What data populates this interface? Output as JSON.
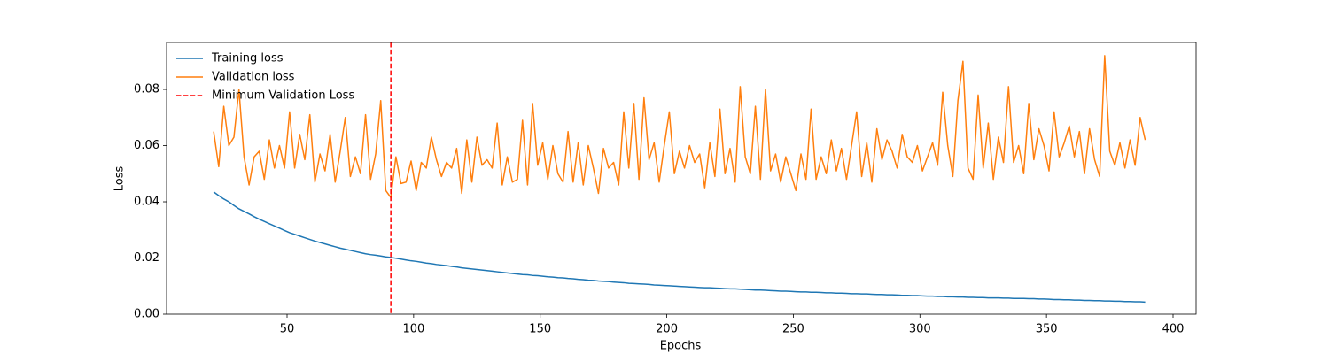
{
  "chart_data": {
    "type": "line",
    "xlabel": "Epochs",
    "ylabel": "Loss",
    "x": [
      21,
      23,
      25,
      27,
      29,
      31,
      33,
      35,
      37,
      39,
      41,
      43,
      45,
      47,
      49,
      51,
      53,
      55,
      57,
      59,
      61,
      63,
      65,
      67,
      69,
      71,
      73,
      75,
      77,
      79,
      81,
      83,
      85,
      87,
      89,
      91,
      93,
      95,
      97,
      99,
      101,
      103,
      105,
      107,
      109,
      111,
      113,
      115,
      117,
      119,
      121,
      123,
      125,
      127,
      129,
      131,
      133,
      135,
      137,
      139,
      141,
      143,
      145,
      147,
      149,
      151,
      153,
      155,
      157,
      159,
      161,
      163,
      165,
      167,
      169,
      171,
      173,
      175,
      177,
      179,
      181,
      183,
      185,
      187,
      189,
      191,
      193,
      195,
      197,
      199,
      201,
      203,
      205,
      207,
      209,
      211,
      213,
      215,
      217,
      219,
      221,
      223,
      225,
      227,
      229,
      231,
      233,
      235,
      237,
      239,
      241,
      243,
      245,
      247,
      249,
      251,
      253,
      255,
      257,
      259,
      261,
      263,
      265,
      267,
      269,
      271,
      273,
      275,
      277,
      279,
      281,
      283,
      285,
      287,
      289,
      291,
      293,
      295,
      297,
      299,
      301,
      303,
      305,
      307,
      309,
      311,
      313,
      315,
      317,
      319,
      321,
      323,
      325,
      327,
      329,
      331,
      333,
      335,
      337,
      339,
      341,
      343,
      345,
      347,
      349,
      351,
      353,
      355,
      357,
      359,
      361,
      363,
      365,
      367,
      369,
      371,
      373,
      375,
      377,
      379,
      381,
      383,
      385,
      387,
      389
    ],
    "series": [
      {
        "name": "Training loss",
        "color": "#1f77b4",
        "values": [
          0.0435,
          0.0422,
          0.041,
          0.04,
          0.0387,
          0.0375,
          0.0366,
          0.0357,
          0.0347,
          0.0338,
          0.033,
          0.0322,
          0.0314,
          0.0306,
          0.0298,
          0.029,
          0.0284,
          0.0278,
          0.0272,
          0.0266,
          0.026,
          0.0255,
          0.025,
          0.0245,
          0.024,
          0.0235,
          0.0231,
          0.0227,
          0.0223,
          0.0219,
          0.0215,
          0.0212,
          0.021,
          0.0207,
          0.0204,
          0.0202,
          0.0199,
          0.0196,
          0.0193,
          0.019,
          0.0188,
          0.0185,
          0.0182,
          0.018,
          0.0177,
          0.0175,
          0.0173,
          0.017,
          0.0168,
          0.0165,
          0.0163,
          0.0161,
          0.0159,
          0.0157,
          0.0155,
          0.0153,
          0.0151,
          0.0149,
          0.0147,
          0.0145,
          0.0143,
          0.0141,
          0.014,
          0.0138,
          0.0137,
          0.0135,
          0.0133,
          0.0132,
          0.013,
          0.0129,
          0.0127,
          0.0126,
          0.0124,
          0.0123,
          0.0121,
          0.012,
          0.0118,
          0.0117,
          0.0116,
          0.0114,
          0.0113,
          0.0112,
          0.011,
          0.0109,
          0.0108,
          0.0107,
          0.0106,
          0.0104,
          0.0103,
          0.0102,
          0.0101,
          0.01,
          0.0099,
          0.0098,
          0.0097,
          0.0096,
          0.0095,
          0.0094,
          0.0094,
          0.0093,
          0.0092,
          0.0091,
          0.009,
          0.009,
          0.0089,
          0.0088,
          0.0087,
          0.0086,
          0.0086,
          0.0085,
          0.0084,
          0.0083,
          0.0082,
          0.0082,
          0.0081,
          0.008,
          0.0079,
          0.0079,
          0.0078,
          0.0078,
          0.0077,
          0.0076,
          0.0076,
          0.0075,
          0.0075,
          0.0074,
          0.0073,
          0.0073,
          0.0072,
          0.0072,
          0.0071,
          0.007,
          0.007,
          0.0069,
          0.0069,
          0.0068,
          0.0067,
          0.0067,
          0.0066,
          0.0066,
          0.0065,
          0.0064,
          0.0064,
          0.0063,
          0.0063,
          0.0062,
          0.0062,
          0.0061,
          0.0061,
          0.006,
          0.006,
          0.0059,
          0.0059,
          0.0058,
          0.0058,
          0.0058,
          0.0057,
          0.0057,
          0.0056,
          0.0056,
          0.0056,
          0.0055,
          0.0055,
          0.0054,
          0.0054,
          0.0053,
          0.0052,
          0.0052,
          0.0051,
          0.0051,
          0.005,
          0.005,
          0.0049,
          0.0049,
          0.0048,
          0.0048,
          0.0047,
          0.0047,
          0.0046,
          0.0046,
          0.0045,
          0.0045,
          0.0044,
          0.0044,
          0.0043
        ]
      },
      {
        "name": "Validation loss",
        "color": "#ff7f0e",
        "values": [
          0.065,
          0.0525,
          0.074,
          0.06,
          0.063,
          0.08,
          0.056,
          0.046,
          0.056,
          0.058,
          0.048,
          0.062,
          0.052,
          0.06,
          0.052,
          0.072,
          0.052,
          0.064,
          0.055,
          0.071,
          0.047,
          0.057,
          0.051,
          0.064,
          0.047,
          0.058,
          0.07,
          0.049,
          0.056,
          0.05,
          0.071,
          0.048,
          0.057,
          0.076,
          0.044,
          0.0415,
          0.056,
          0.0465,
          0.047,
          0.0545,
          0.044,
          0.054,
          0.052,
          0.063,
          0.055,
          0.049,
          0.054,
          0.052,
          0.059,
          0.043,
          0.062,
          0.047,
          0.063,
          0.053,
          0.055,
          0.052,
          0.068,
          0.046,
          0.056,
          0.047,
          0.048,
          0.069,
          0.046,
          0.075,
          0.053,
          0.061,
          0.048,
          0.06,
          0.05,
          0.047,
          0.065,
          0.047,
          0.061,
          0.046,
          0.06,
          0.052,
          0.043,
          0.059,
          0.052,
          0.054,
          0.046,
          0.072,
          0.052,
          0.075,
          0.048,
          0.077,
          0.055,
          0.061,
          0.047,
          0.06,
          0.072,
          0.05,
          0.058,
          0.052,
          0.06,
          0.054,
          0.057,
          0.045,
          0.061,
          0.049,
          0.073,
          0.05,
          0.059,
          0.047,
          0.081,
          0.056,
          0.05,
          0.074,
          0.048,
          0.08,
          0.051,
          0.057,
          0.047,
          0.056,
          0.05,
          0.044,
          0.057,
          0.048,
          0.073,
          0.048,
          0.056,
          0.05,
          0.062,
          0.051,
          0.059,
          0.048,
          0.06,
          0.072,
          0.049,
          0.061,
          0.047,
          0.066,
          0.055,
          0.062,
          0.058,
          0.052,
          0.064,
          0.056,
          0.054,
          0.06,
          0.051,
          0.056,
          0.061,
          0.053,
          0.079,
          0.06,
          0.049,
          0.076,
          0.09,
          0.052,
          0.048,
          0.078,
          0.052,
          0.068,
          0.048,
          0.063,
          0.054,
          0.081,
          0.054,
          0.06,
          0.05,
          0.075,
          0.055,
          0.066,
          0.06,
          0.051,
          0.072,
          0.056,
          0.061,
          0.067,
          0.056,
          0.065,
          0.05,
          0.066,
          0.055,
          0.049,
          0.092,
          0.058,
          0.053,
          0.061,
          0.052,
          0.062,
          0.053,
          0.07,
          0.062
        ]
      }
    ],
    "vlines": [
      {
        "name": "Minimum Validation Loss",
        "x": 91,
        "color": "#ff0000",
        "style": "dashed"
      }
    ],
    "xlim": [
      2.4,
      409.1
    ],
    "xticks": [
      50,
      100,
      150,
      200,
      250,
      300,
      350,
      400
    ],
    "ylim": [
      0,
      0.0967
    ],
    "yticks": [
      {
        "value": 0,
        "label": "0.00"
      },
      {
        "value": 0.02,
        "label": "0.02"
      },
      {
        "value": 0.04,
        "label": "0.04"
      },
      {
        "value": 0.06,
        "label": "0.06"
      },
      {
        "value": 0.08,
        "label": "0.08"
      }
    ],
    "legend": "upper left"
  }
}
